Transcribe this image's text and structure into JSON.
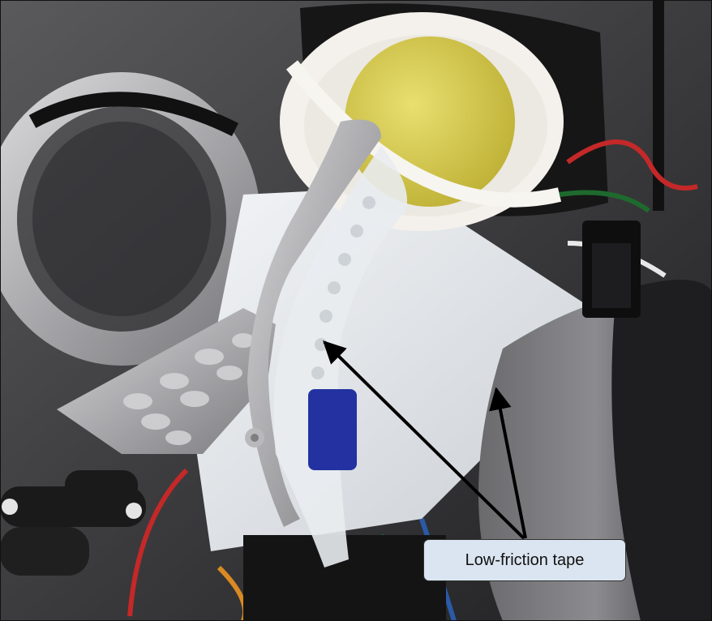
{
  "annotation": {
    "label": "Low-friction tape"
  },
  "colors": {
    "callout_fill": "#dbe5f1",
    "arrow": "#000000",
    "background": "#2a2a2c"
  }
}
